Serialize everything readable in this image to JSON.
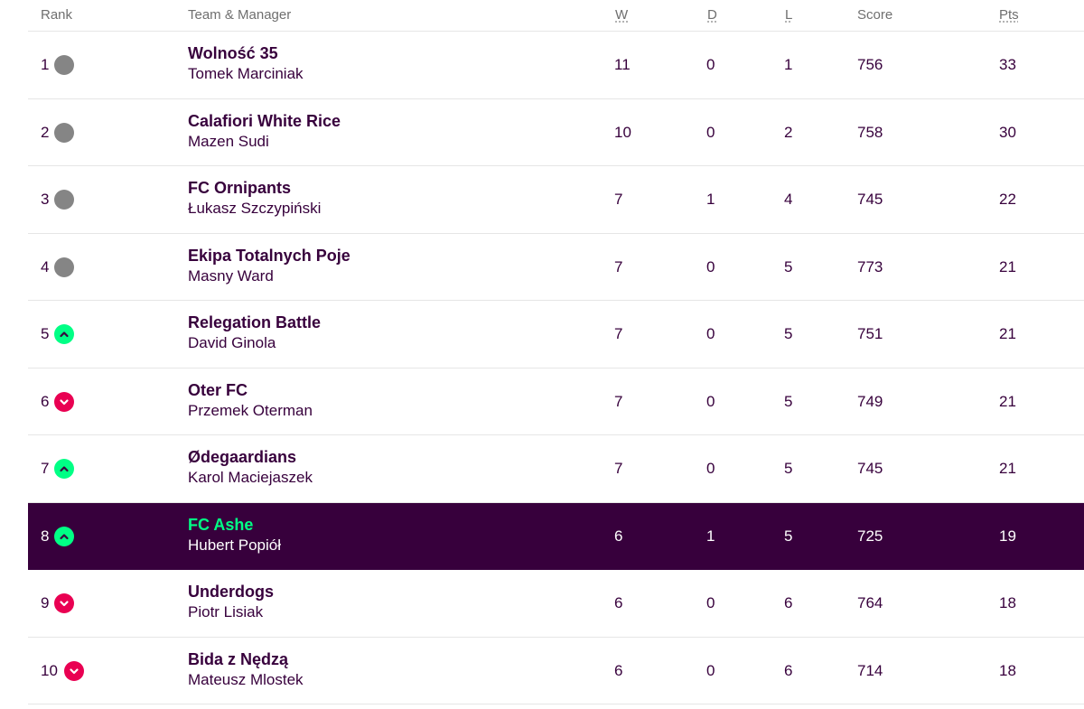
{
  "headers": {
    "rank": "Rank",
    "team": "Team & Manager",
    "w": "W",
    "d": "D",
    "l": "L",
    "score": "Score",
    "pts": "Pts"
  },
  "colors": {
    "primary": "#37003c",
    "up": "#00ff85",
    "down": "#e90052",
    "same": "#858585"
  },
  "rows": [
    {
      "rank": "1",
      "move": "same",
      "team": "Wolność 35",
      "manager": "Tomek Marciniak",
      "w": "11",
      "d": "0",
      "l": "1",
      "score": "756",
      "pts": "33"
    },
    {
      "rank": "2",
      "move": "same",
      "team": "Calafiori White Rice",
      "manager": "Mazen Sudi",
      "w": "10",
      "d": "0",
      "l": "2",
      "score": "758",
      "pts": "30"
    },
    {
      "rank": "3",
      "move": "same",
      "team": "FC Ornipants",
      "manager": "Łukasz Szczypiński",
      "w": "7",
      "d": "1",
      "l": "4",
      "score": "745",
      "pts": "22"
    },
    {
      "rank": "4",
      "move": "same",
      "team": "Ekipa Totalnych Poje",
      "manager": "Masny Ward",
      "w": "7",
      "d": "0",
      "l": "5",
      "score": "773",
      "pts": "21"
    },
    {
      "rank": "5",
      "move": "up",
      "team": "Relegation Battle",
      "manager": "David Ginola",
      "w": "7",
      "d": "0",
      "l": "5",
      "score": "751",
      "pts": "21"
    },
    {
      "rank": "6",
      "move": "down",
      "team": "Oter FC",
      "manager": "Przemek Oterman",
      "w": "7",
      "d": "0",
      "l": "5",
      "score": "749",
      "pts": "21"
    },
    {
      "rank": "7",
      "move": "up",
      "team": "Ødegaardians",
      "manager": "Karol Maciejaszek",
      "w": "7",
      "d": "0",
      "l": "5",
      "score": "745",
      "pts": "21"
    },
    {
      "rank": "8",
      "move": "up",
      "team": "FC Ashe",
      "manager": "Hubert Popiół",
      "w": "6",
      "d": "1",
      "l": "5",
      "score": "725",
      "pts": "19",
      "highlight": true
    },
    {
      "rank": "9",
      "move": "down",
      "team": "Underdogs",
      "manager": "Piotr Lisiak",
      "w": "6",
      "d": "0",
      "l": "6",
      "score": "764",
      "pts": "18"
    },
    {
      "rank": "10",
      "move": "down",
      "team": "Bida z Nędzą",
      "manager": "Mateusz Mlostek",
      "w": "6",
      "d": "0",
      "l": "6",
      "score": "714",
      "pts": "18"
    }
  ]
}
